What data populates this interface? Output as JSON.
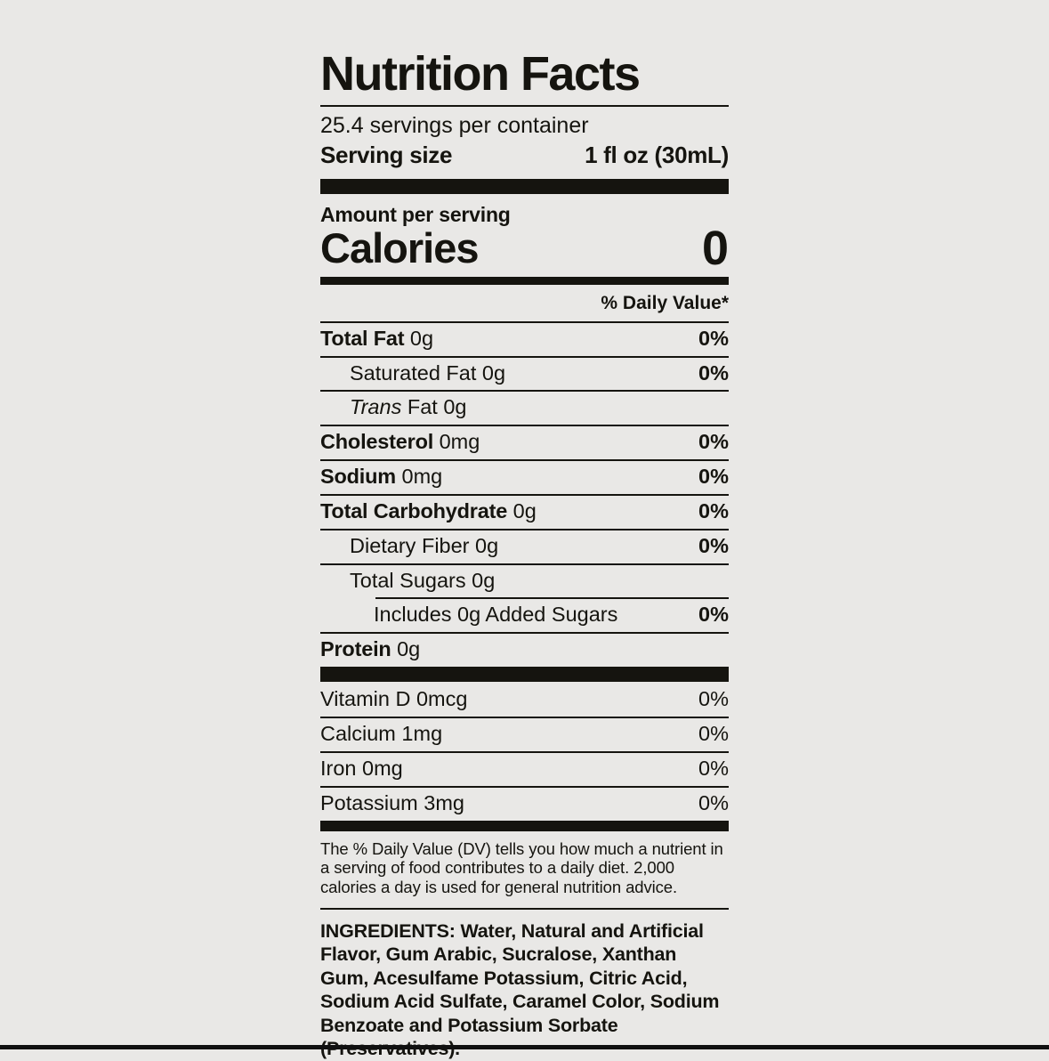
{
  "colors": {
    "background": "#e9e8e6",
    "text": "#15140f"
  },
  "label": {
    "title": "Nutrition Facts",
    "servings_per_container": "25.4 servings per container",
    "serving_size_label": "Serving size",
    "serving_size_value": "1 fl oz (30mL)",
    "amount_per_serving": "Amount per serving",
    "calories_label": "Calories",
    "calories_value": "0",
    "daily_value_header": "% Daily Value*",
    "nutrients": [
      {
        "name": "Total Fat",
        "amount": "0g",
        "dv": "0%",
        "bold": true,
        "indent": 0
      },
      {
        "name": "Saturated Fat",
        "amount": "0g",
        "dv": "0%",
        "bold": false,
        "indent": 1
      },
      {
        "name": "Trans Fat",
        "amount": "0g",
        "dv": "",
        "bold": false,
        "indent": 1,
        "italic_first_word": true
      },
      {
        "name": "Cholesterol",
        "amount": "0mg",
        "dv": "0%",
        "bold": true,
        "indent": 0
      },
      {
        "name": "Sodium",
        "amount": "0mg",
        "dv": "0%",
        "bold": true,
        "indent": 0
      },
      {
        "name": "Total Carbohydrate",
        "amount": "0g",
        "dv": "0%",
        "bold": true,
        "indent": 0
      },
      {
        "name": "Dietary Fiber",
        "amount": "0g",
        "dv": "0%",
        "bold": false,
        "indent": 1
      },
      {
        "name": "Total Sugars",
        "amount": "0g",
        "dv": "",
        "bold": false,
        "indent": 1
      },
      {
        "name": "Includes 0g Added Sugars",
        "amount": "",
        "dv": "0%",
        "bold": false,
        "indent": 2,
        "partial_rule": true
      },
      {
        "name": "Protein",
        "amount": "0g",
        "dv": "",
        "bold": true,
        "indent": 0
      }
    ],
    "micronutrients": [
      {
        "name": "Vitamin D",
        "amount": "0mcg",
        "dv": "0%"
      },
      {
        "name": "Calcium",
        "amount": "1mg",
        "dv": "0%"
      },
      {
        "name": "Iron",
        "amount": "0mg",
        "dv": "0%"
      },
      {
        "name": "Potassium",
        "amount": "3mg",
        "dv": "0%"
      }
    ],
    "footnote": "The % Daily Value (DV) tells you how much a nutrient in a serving of food contributes to a daily diet. 2,000 calories a day is used for general nutrition advice.",
    "ingredients": "INGREDIENTS: Water, Natural and Artificial Flavor, Gum Arabic, Sucralose, Xanthan Gum, Acesulfame Potassium, Citric Acid, Sodium Acid Sulfate, Caramel Color, Sodium Benzoate and Potassium Sorbate (Preservatives)."
  }
}
